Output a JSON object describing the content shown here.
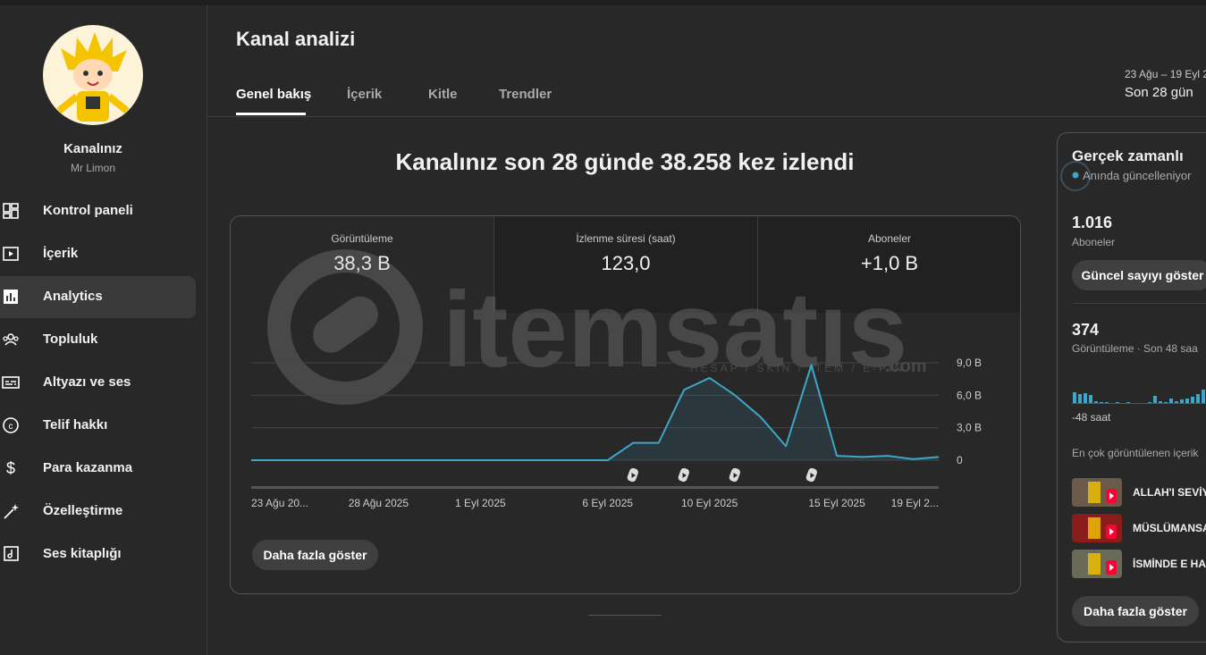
{
  "sidebar": {
    "channel_title": "Kanalınız",
    "channel_name": "Mr Limon",
    "nav": [
      "Kontrol paneli",
      "İçerik",
      "Analytics",
      "Topluluk",
      "Altyazı ve ses",
      "Telif hakkı",
      "Para kazanma",
      "Özelleştirme",
      "Ses kitaplığı"
    ]
  },
  "header": {
    "title": "Kanal analizi",
    "tabs": [
      "Genel bakış",
      "İçerik",
      "Kitle",
      "Trendler"
    ],
    "date_range": "23 Ağu – 19 Eyl 2",
    "period": "Son 28 gün"
  },
  "overview": {
    "headline": "Kanalınız son 28 günde 38.258 kez izlendi",
    "metrics": [
      {
        "label": "Görüntüleme",
        "value": "38,3 B"
      },
      {
        "label": "İzlenme süresi (saat)",
        "value": "123,0"
      },
      {
        "label": "Aboneler",
        "value": "+1,0 B"
      }
    ],
    "more_button": "Daha fazla göster"
  },
  "chart_data": {
    "type": "line",
    "color": "#3ea6c8",
    "categories": [
      "23 Ağu 20...",
      null,
      null,
      null,
      null,
      "28 Ağu 2025",
      null,
      null,
      null,
      "1 Eyl 2025",
      null,
      null,
      null,
      null,
      "6 Eyl 2025",
      null,
      null,
      null,
      "10 Eyl 2025",
      null,
      null,
      null,
      null,
      "15 Eyl 2025",
      null,
      null,
      null,
      "19 Eyl 2..."
    ],
    "values": [
      0,
      0,
      0,
      0,
      0,
      0,
      0,
      0,
      0,
      0,
      0,
      0,
      0,
      0,
      0,
      1600,
      1600,
      6500,
      7600,
      6000,
      4000,
      1300,
      8800,
      400,
      300,
      400,
      100,
      300
    ],
    "ylim": [
      0,
      9000
    ],
    "yticks": [
      0,
      {
        "value": 3000,
        "label": "3,0 B"
      },
      {
        "value": 6000,
        "label": "6,0 B"
      },
      {
        "value": 9000,
        "label": "9,0 B"
      }
    ],
    "grid": true
  },
  "watermark": {
    "brand": "itemsatıs",
    "tagline": "HESAP / SKIN / ITEM / E-PIN",
    "suffix": ".com"
  },
  "realtime": {
    "title": "Gerçek zamanlı",
    "status": "Anında güncelleniyor",
    "subscribers": "1.016",
    "subscribers_label": "Aboneler",
    "button": "Güncel sayıyı göster",
    "views": "374",
    "views_label": "Görüntüleme · Son 48 saa",
    "bars": [
      12,
      10,
      11,
      9,
      2,
      1,
      1,
      0,
      1,
      0,
      1,
      0,
      0,
      0,
      1,
      8,
      2,
      1,
      5,
      2,
      4,
      5,
      7,
      10,
      15
    ],
    "axis_label": "-48 saat",
    "top_content_title": "En çok görüntülenen içerik",
    "top_content": [
      "ALLAH'I SEVİY",
      "MÜSLÜMANSA",
      "İSMİNDE E HA"
    ],
    "more_button": "Daha fazla göster"
  }
}
